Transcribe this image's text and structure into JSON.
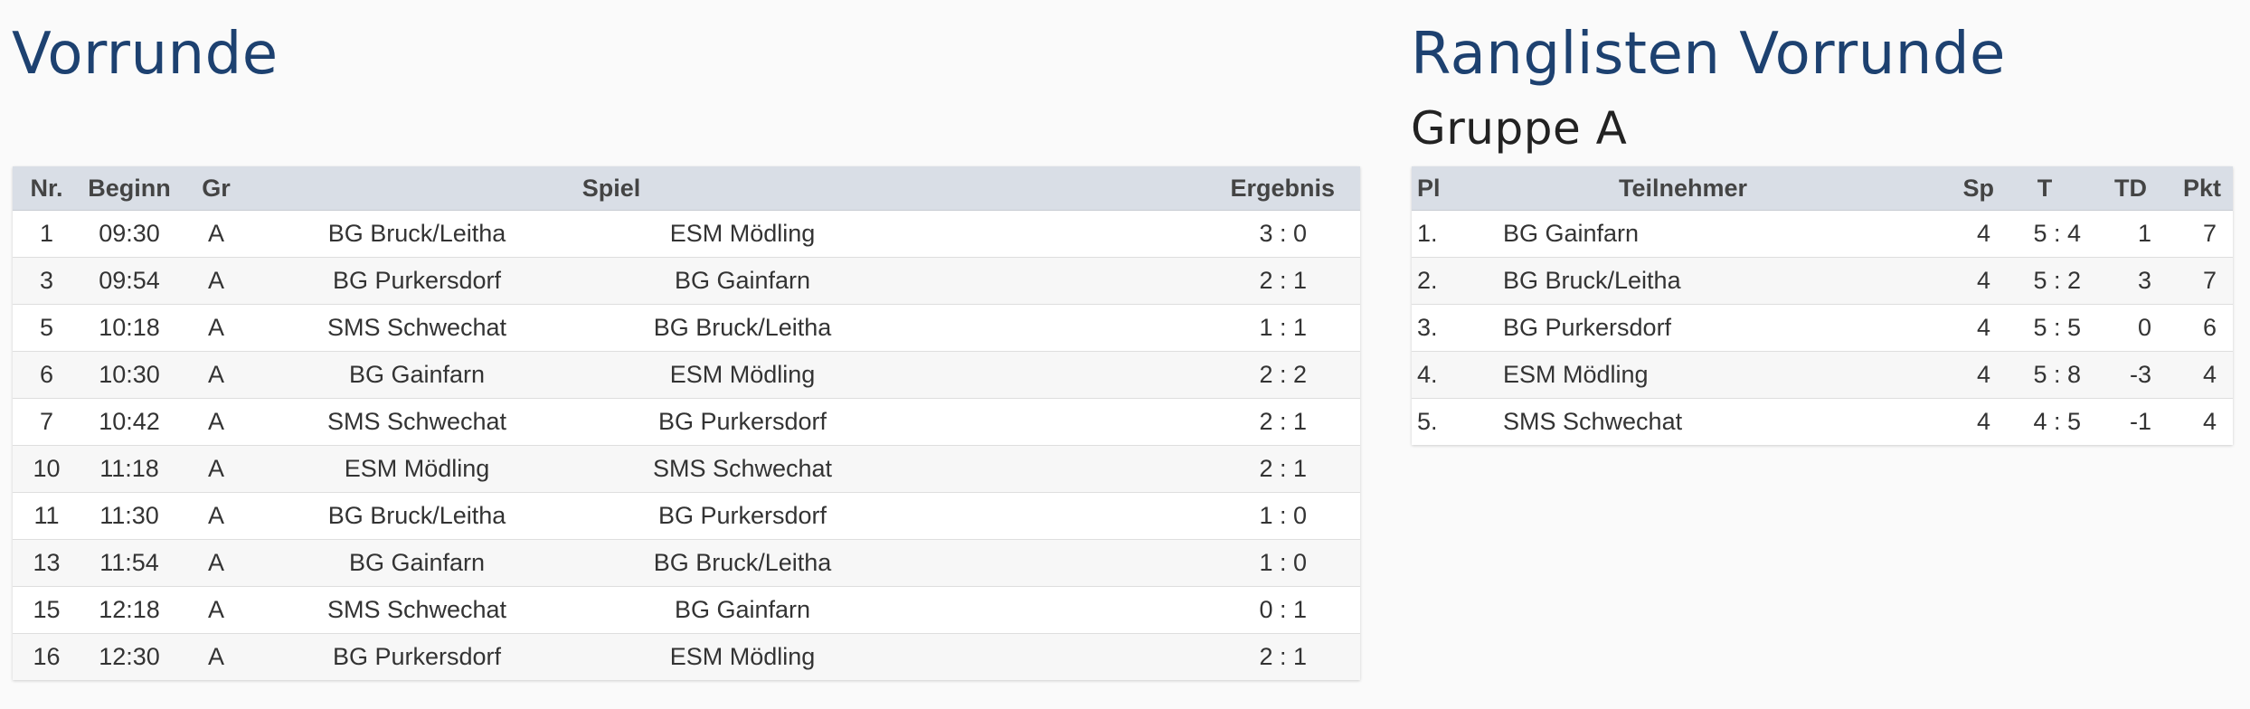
{
  "vorrunde": {
    "title": "Vorrunde",
    "columns": {
      "nr": "Nr.",
      "beginn": "Beginn",
      "gr": "Gr",
      "spiel": "Spiel",
      "ergebnis": "Ergebnis"
    },
    "rows": [
      {
        "nr": "1",
        "beginn": "09:30",
        "gr": "A",
        "home": "BG Bruck/Leitha",
        "away": "ESM Mödling",
        "ergebnis": "3 : 0"
      },
      {
        "nr": "3",
        "beginn": "09:54",
        "gr": "A",
        "home": "BG Purkersdorf",
        "away": "BG Gainfarn",
        "ergebnis": "2 : 1"
      },
      {
        "nr": "5",
        "beginn": "10:18",
        "gr": "A",
        "home": "SMS Schwechat",
        "away": "BG Bruck/Leitha",
        "ergebnis": "1 : 1"
      },
      {
        "nr": "6",
        "beginn": "10:30",
        "gr": "A",
        "home": "BG Gainfarn",
        "away": "ESM Mödling",
        "ergebnis": "2 : 2"
      },
      {
        "nr": "7",
        "beginn": "10:42",
        "gr": "A",
        "home": "SMS Schwechat",
        "away": "BG Purkersdorf",
        "ergebnis": "2 : 1"
      },
      {
        "nr": "10",
        "beginn": "11:18",
        "gr": "A",
        "home": "ESM Mödling",
        "away": "SMS Schwechat",
        "ergebnis": "2 : 1"
      },
      {
        "nr": "11",
        "beginn": "11:30",
        "gr": "A",
        "home": "BG Bruck/Leitha",
        "away": "BG Purkersdorf",
        "ergebnis": "1 : 0"
      },
      {
        "nr": "13",
        "beginn": "11:54",
        "gr": "A",
        "home": "BG Gainfarn",
        "away": "BG Bruck/Leitha",
        "ergebnis": "1 : 0"
      },
      {
        "nr": "15",
        "beginn": "12:18",
        "gr": "A",
        "home": "SMS Schwechat",
        "away": "BG Gainfarn",
        "ergebnis": "0 : 1"
      },
      {
        "nr": "16",
        "beginn": "12:30",
        "gr": "A",
        "home": "BG Purkersdorf",
        "away": "ESM Mödling",
        "ergebnis": "2 : 1"
      }
    ]
  },
  "ranglisten": {
    "title": "Ranglisten Vorrunde",
    "group_title": "Gruppe A",
    "columns": {
      "pl": "Pl",
      "teilnehmer": "Teilnehmer",
      "sp": "Sp",
      "t": "T",
      "td": "TD",
      "pkt": "Pkt"
    },
    "rows": [
      {
        "pl": "1.",
        "teilnehmer": "BG Gainfarn",
        "sp": "4",
        "t": "5 : 4",
        "td": "1",
        "pkt": "7"
      },
      {
        "pl": "2.",
        "teilnehmer": "BG Bruck/Leitha",
        "sp": "4",
        "t": "5 : 2",
        "td": "3",
        "pkt": "7"
      },
      {
        "pl": "3.",
        "teilnehmer": "BG Purkersdorf",
        "sp": "4",
        "t": "5 : 5",
        "td": "0",
        "pkt": "6"
      },
      {
        "pl": "4.",
        "teilnehmer": "ESM Mödling",
        "sp": "4",
        "t": "5 : 8",
        "td": "-3",
        "pkt": "4"
      },
      {
        "pl": "5.",
        "teilnehmer": "SMS Schwechat",
        "sp": "4",
        "t": "4 : 5",
        "td": "-1",
        "pkt": "4"
      }
    ]
  }
}
